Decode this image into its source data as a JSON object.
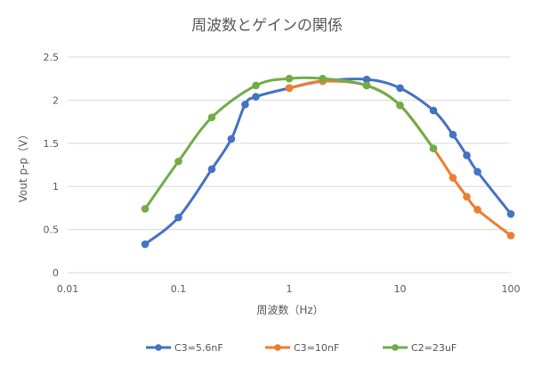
{
  "chart_data": {
    "type": "scatter",
    "title": "周波数とゲインの関係",
    "xlabel": "周波数（Hz）",
    "ylabel": "Vout p-p（V）",
    "xscale": "log",
    "xlim": [
      0.01,
      100
    ],
    "ylim": [
      0,
      2.5
    ],
    "xticks": [
      0.01,
      0.1,
      1,
      10,
      100
    ],
    "xtick_labels": [
      "0.01",
      "0.1",
      "1",
      "10",
      "100"
    ],
    "yticks": [
      0,
      0.5,
      1,
      1.5,
      2,
      2.5
    ],
    "ytick_labels": [
      "0",
      "0.5",
      "1",
      "1.5",
      "2",
      "2.5"
    ],
    "grid": "horizontal",
    "legend_position": "bottom",
    "series": [
      {
        "name": "C3=5.6nF",
        "color": "#4472C4",
        "x": [
          0.05,
          0.1,
          0.2,
          0.3,
          0.4,
          0.5,
          1,
          2,
          5,
          10,
          20,
          30,
          40,
          50,
          100
        ],
        "y": [
          0.33,
          0.64,
          1.2,
          1.55,
          1.95,
          2.04,
          2.14,
          2.22,
          2.24,
          2.14,
          1.88,
          1.6,
          1.36,
          1.17,
          0.68
        ]
      },
      {
        "name": "C3=10nF",
        "color": "#ED7D31",
        "x": [
          1,
          2,
          5,
          10,
          20,
          30,
          40,
          50,
          100
        ],
        "y": [
          2.14,
          2.22,
          2.17,
          1.94,
          1.44,
          1.1,
          0.88,
          0.73,
          0.43
        ]
      },
      {
        "name": "C2=23uF",
        "color": "#70AD47",
        "x": [
          0.05,
          0.1,
          0.2,
          0.5,
          1,
          2,
          5,
          10,
          20
        ],
        "y": [
          0.74,
          1.29,
          1.8,
          2.17,
          2.25,
          2.25,
          2.17,
          1.94,
          1.44
        ]
      }
    ]
  }
}
